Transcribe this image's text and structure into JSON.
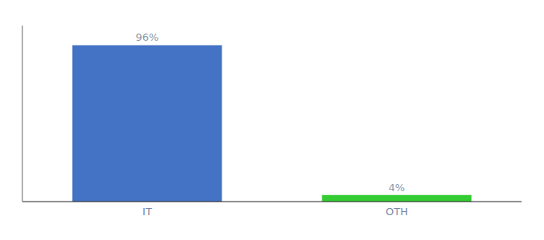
{
  "chart_data": {
    "type": "bar",
    "categories": [
      "IT",
      "OTH"
    ],
    "values": [
      96,
      4
    ],
    "value_labels": [
      "96%",
      "4%"
    ],
    "colors": [
      "#4472C4",
      "#33CC33"
    ],
    "ylim": [
      0,
      108
    ],
    "data_labels": true,
    "tick_labels": "x"
  }
}
